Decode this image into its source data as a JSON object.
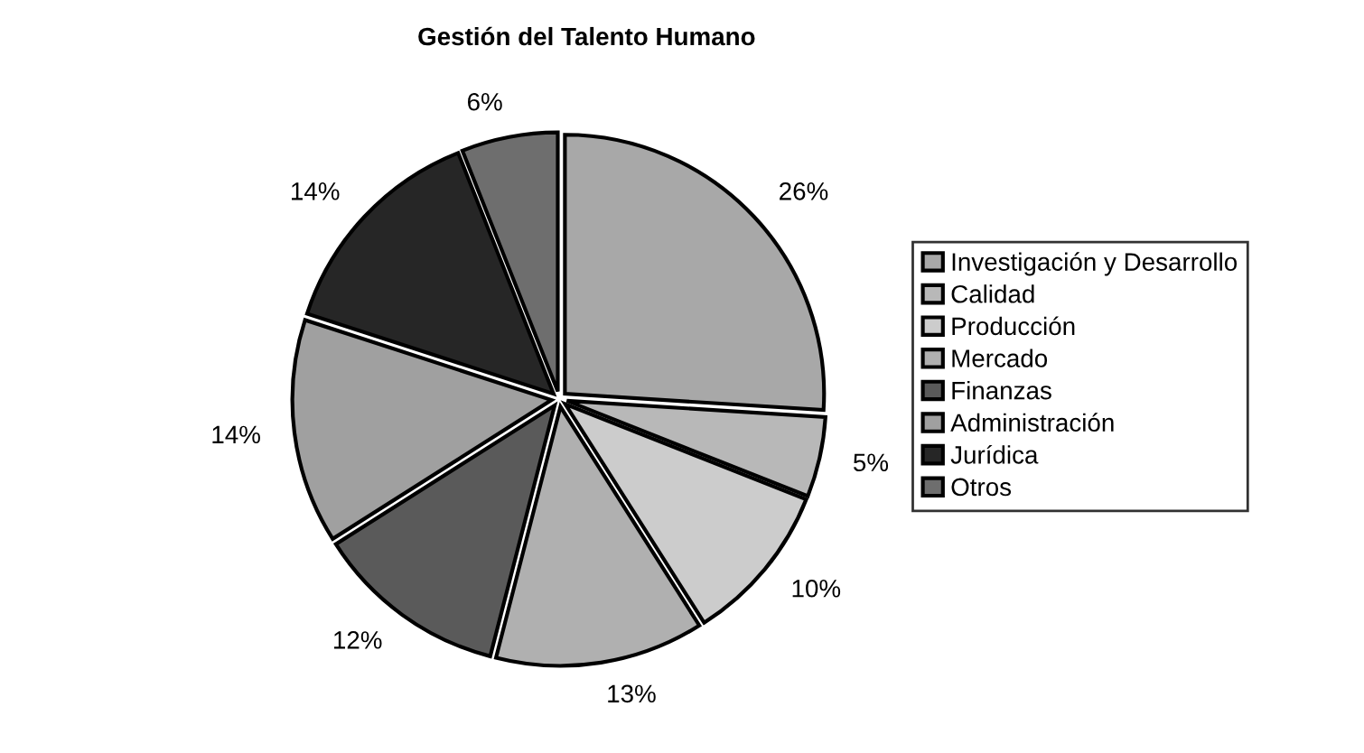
{
  "chart_data": {
    "type": "pie",
    "title": "Gestión del Talento Humano",
    "categories": [
      "Investigación y Desarrollo",
      "Calidad",
      "Producción",
      "Mercado",
      "Finanzas",
      "Administración",
      "Jurídica",
      "Otros"
    ],
    "values": [
      26,
      5,
      10,
      13,
      12,
      14,
      14,
      6
    ],
    "colors": [
      "#a8a8a8",
      "#b8b8b8",
      "#cccccc",
      "#b0b0b0",
      "#5a5a5a",
      "#a0a0a0",
      "#262626",
      "#6e6e6e"
    ],
    "value_labels": [
      "26%",
      "5%",
      "10%",
      "13%",
      "12%",
      "14%",
      "14%",
      "6%"
    ],
    "legend": "right"
  }
}
